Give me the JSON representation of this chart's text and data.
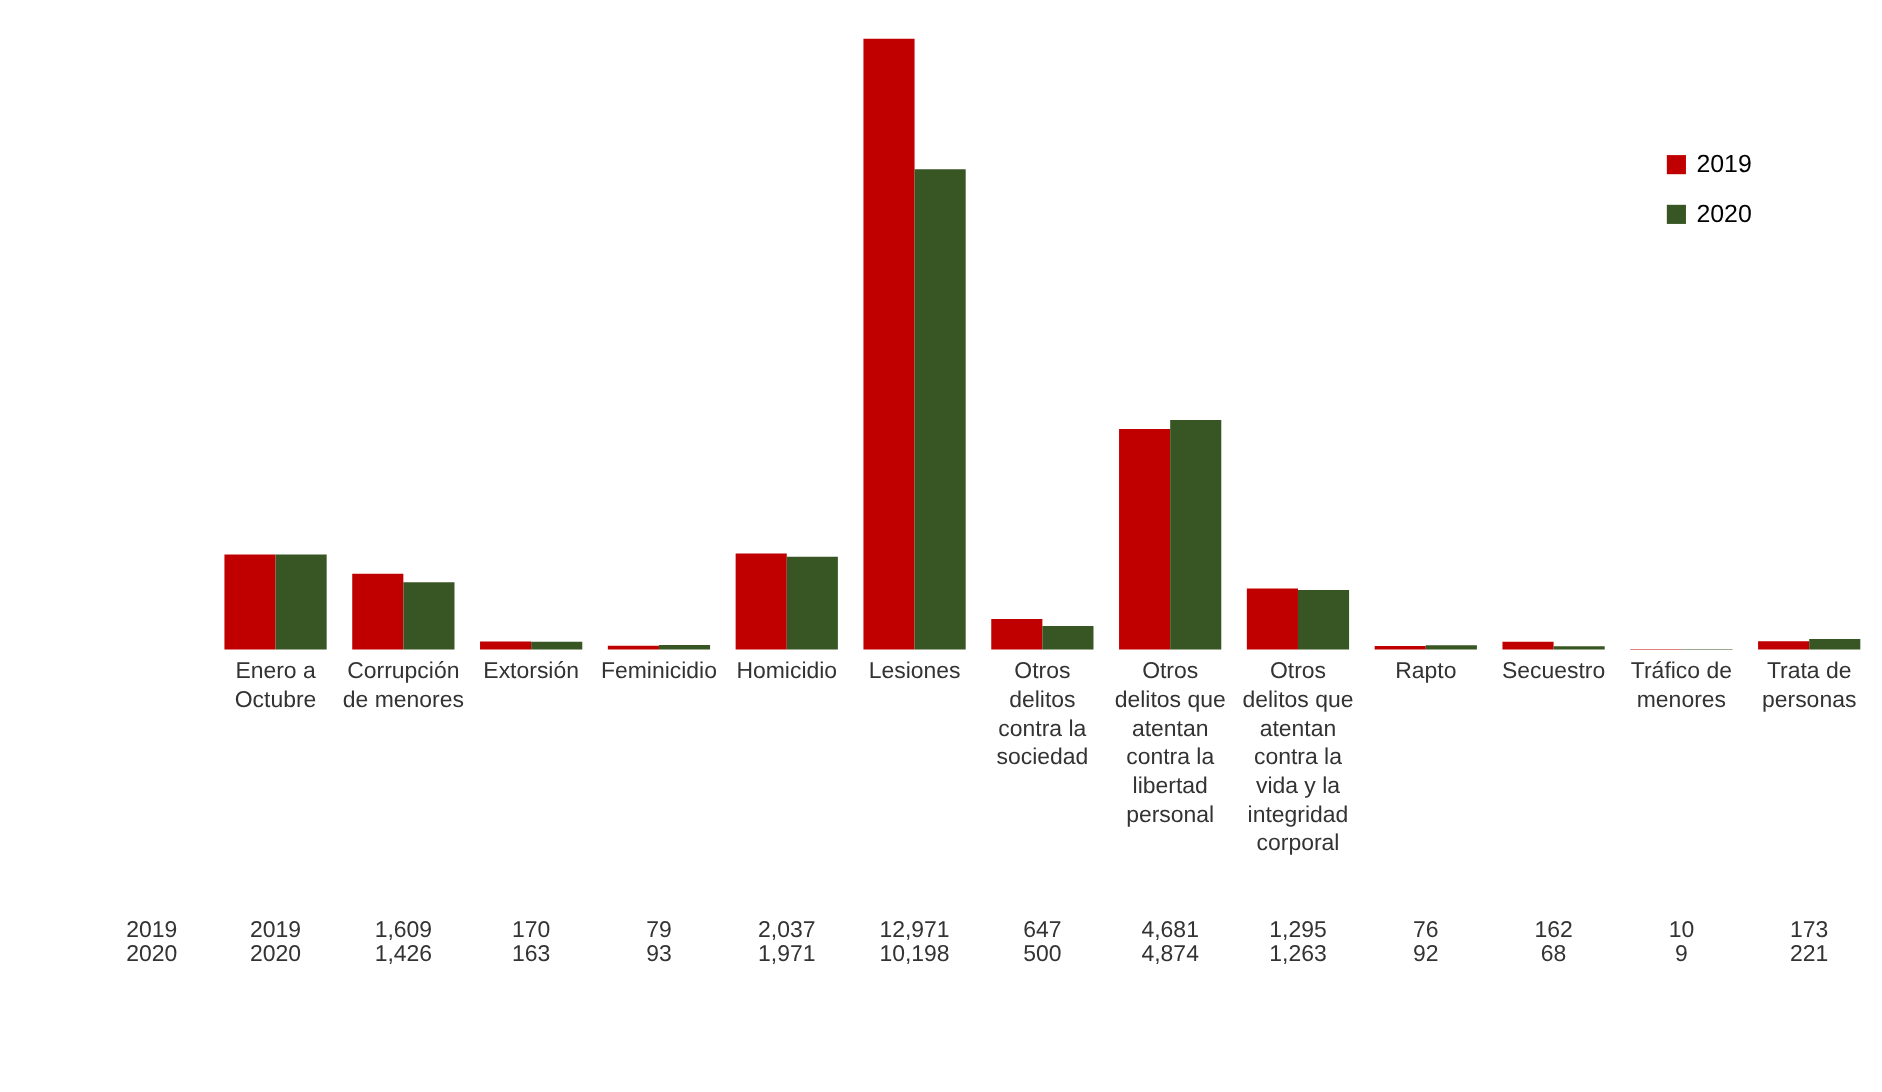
{
  "chart_data": {
    "type": "bar",
    "categories": [
      "Enero a Octubre",
      "Corrupción de menores",
      "Extorsión",
      "Feminicidio",
      "Homicidio",
      "Lesiones",
      "Otros delitos contra la sociedad",
      "Otros delitos que atentan contra la libertad personal",
      "Otros delitos que atentan contra la vida y la integridad corporal",
      "Rapto",
      "Secuestro",
      "Tráfico de menores",
      "Trata de personas"
    ],
    "series": [
      {
        "name": "2019",
        "color": "#c00000",
        "values": [
          2019,
          1609,
          170,
          79,
          2037,
          12971,
          647,
          4681,
          1295,
          76,
          162,
          10,
          173
        ],
        "value_labels": [
          "2019",
          "1,609",
          "170",
          "79",
          "2,037",
          "12,971",
          "647",
          "4,681",
          "1,295",
          "76",
          "162",
          "10",
          "173"
        ]
      },
      {
        "name": "2020",
        "color": "#375623",
        "values": [
          2020,
          1426,
          163,
          93,
          1971,
          10198,
          500,
          4874,
          1263,
          92,
          68,
          9,
          221
        ],
        "value_labels": [
          "2020",
          "1,426",
          "163",
          "93",
          "1,971",
          "10,198",
          "500",
          "4,874",
          "1,263",
          "92",
          "68",
          "9",
          "221"
        ]
      }
    ],
    "legend": "top right"
  }
}
